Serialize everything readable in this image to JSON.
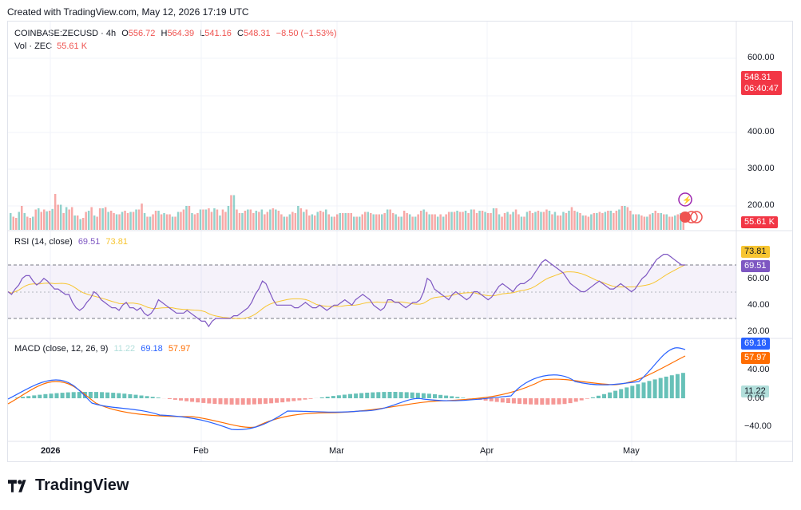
{
  "header": {
    "text": "Created with TradingView.com, May 12, 2026 17:19 UTC"
  },
  "legend": {
    "symbol": "COINBASE:ZECUSD · 4h",
    "o_label": "O",
    "o": "556.72",
    "h_label": "H",
    "h": "564.39",
    "l_label": "L",
    "l": "541.16",
    "c_label": "C",
    "c": "548.31",
    "chg": "−8.50 (−1.53%)",
    "vol_label": "Vol · ZEC",
    "vol": "55.61 K"
  },
  "price_axis": {
    "ticks": [
      "600.00",
      "400.00",
      "300.00",
      "200.00"
    ],
    "last_price": "548.31",
    "countdown": "06:40:47",
    "vol_tag": "55.61 K"
  },
  "rsi": {
    "label": "RSI (14, close)",
    "value": "69.51",
    "ma": "73.81",
    "ticks": [
      "60.00",
      "40.00",
      "20.00"
    ]
  },
  "macd": {
    "label": "MACD (close, 12, 26, 9)",
    "hist": "11.22",
    "macd": "69.18",
    "signal": "57.97",
    "ticks": [
      "40.00",
      "0.00",
      "−40.00"
    ]
  },
  "time_axis": {
    "labels": [
      "2026",
      "Feb",
      "Mar",
      "Apr",
      "May"
    ]
  },
  "footer": {
    "brand": "TradingView"
  },
  "colors": {
    "up": "#26a69a",
    "down": "#ef5350",
    "rsi": "#7e57c2",
    "rsi_ma": "#f7c531",
    "macd": "#2962ff",
    "signal": "#ff6d00"
  },
  "series": {
    "volume": [
      28,
      22,
      20,
      30,
      40,
      28,
      22,
      20,
      22,
      34,
      36,
      30,
      34,
      31,
      32,
      35,
      60,
      42,
      42,
      28,
      38,
      34,
      38,
      24,
      24,
      18,
      20,
      30,
      32,
      38,
      24,
      22,
      36,
      36,
      38,
      30,
      32,
      28,
      26,
      26,
      30,
      32,
      28,
      30,
      30,
      34,
      34,
      44,
      28,
      22,
      22,
      26,
      32,
      32,
      26,
      28,
      26,
      26,
      22,
      22,
      30,
      30,
      34,
      40,
      40,
      28,
      26,
      28,
      34,
      34,
      34,
      36,
      30,
      36,
      34,
      24,
      34,
      30,
      40,
      58,
      58,
      34,
      28,
      28,
      32,
      34,
      34,
      28,
      32,
      30,
      34,
      26,
      30,
      34,
      36,
      34,
      32,
      26,
      22,
      22,
      26,
      30,
      28,
      40,
      36,
      30,
      34,
      24,
      26,
      24,
      30,
      32,
      30,
      34,
      26,
      22,
      22,
      26,
      28,
      28,
      28,
      28,
      28,
      22,
      22,
      22,
      26,
      30,
      30,
      28,
      26,
      26,
      26,
      26,
      28,
      34,
      34,
      28,
      26,
      22,
      22,
      32,
      28,
      26,
      22,
      22,
      26,
      32,
      34,
      30,
      26,
      26,
      26,
      22,
      26,
      22,
      26,
      30,
      30,
      30,
      32,
      30,
      30,
      32,
      28,
      34,
      34,
      28,
      32,
      32,
      30,
      28,
      28,
      36,
      36,
      26,
      22,
      28,
      30,
      26,
      30,
      34,
      26,
      22,
      22,
      30,
      32,
      28,
      30,
      32,
      30,
      30,
      34,
      32,
      26,
      30,
      24,
      24,
      30,
      28,
      32,
      38,
      32,
      30,
      28,
      24,
      24,
      22,
      26,
      28,
      28,
      30,
      28,
      30,
      32,
      32,
      28,
      32,
      34,
      40,
      40,
      38,
      32,
      26,
      26,
      26,
      24,
      22,
      22,
      26,
      28,
      32,
      28,
      28,
      26,
      26,
      22,
      22,
      24,
      26,
      28,
      30
    ],
    "rsi": [
      50,
      48,
      52,
      55,
      60,
      62,
      62,
      58,
      55,
      57,
      60,
      58,
      55,
      52,
      52,
      50,
      48,
      48,
      42,
      38,
      36,
      38,
      42,
      45,
      50,
      48,
      44,
      42,
      40,
      38,
      38,
      36,
      40,
      42,
      38,
      38,
      36,
      38,
      34,
      32,
      34,
      38,
      44,
      42,
      40,
      38,
      36,
      34,
      34,
      34,
      36,
      34,
      32,
      30,
      28,
      28,
      24,
      28,
      30,
      30,
      30,
      30,
      30,
      32,
      32,
      34,
      36,
      38,
      42,
      48,
      52,
      58,
      56,
      50,
      44,
      40,
      40,
      40,
      40,
      40,
      38,
      38,
      40,
      42,
      40,
      38,
      38,
      40,
      38,
      36,
      38,
      40,
      40,
      42,
      44,
      42,
      40,
      44,
      46,
      48,
      46,
      44,
      40,
      38,
      36,
      38,
      44,
      44,
      42,
      42,
      40,
      38,
      40,
      42,
      42,
      44,
      50,
      60,
      58,
      52,
      50,
      48,
      46,
      44,
      48,
      50,
      48,
      46,
      44,
      46,
      50,
      50,
      48,
      46,
      44,
      46,
      50,
      54,
      56,
      54,
      52,
      50,
      54,
      56,
      56,
      58,
      60,
      64,
      68,
      72,
      74,
      72,
      70,
      68,
      66,
      64,
      60,
      56,
      54,
      52,
      50,
      50,
      52,
      54,
      56,
      58,
      56,
      54,
      52,
      52,
      54,
      56,
      54,
      52,
      50,
      52,
      56,
      60,
      62,
      66,
      70,
      74,
      76,
      78,
      78,
      76,
      74,
      72,
      70,
      70
    ]
  }
}
